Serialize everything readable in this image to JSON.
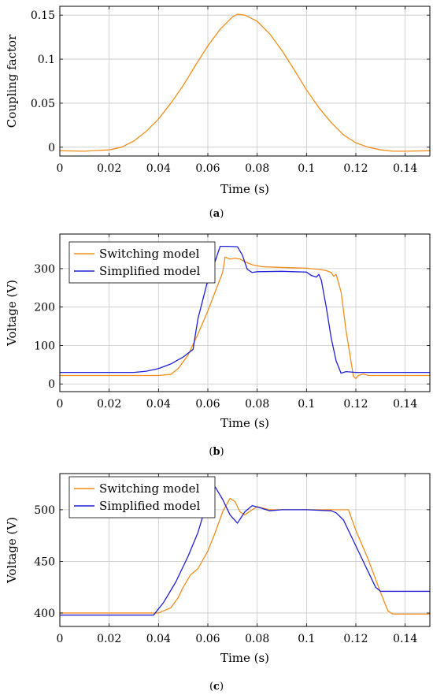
{
  "colors": {
    "orange": "#f28e1c",
    "blue": "#1f1fd8",
    "grid": "#c8c8c8",
    "axis": "#000000"
  },
  "chart_data": [
    {
      "type": "line",
      "caption": "a",
      "xlabel": "Time (s)",
      "ylabel": "Coupling factor",
      "xlim": [
        0,
        0.15
      ],
      "ylim": [
        -0.01,
        0.16
      ],
      "xticks": [
        0,
        0.02,
        0.04,
        0.06,
        0.08,
        0.1,
        0.12,
        0.14
      ],
      "xtick_labels": [
        "0",
        "0.02",
        "0.04",
        "0.06",
        "0.08",
        "0.1",
        "0.12",
        "0.14"
      ],
      "yticks": [
        0,
        0.05,
        0.1,
        0.15
      ],
      "ytick_labels": [
        "0",
        "0.05",
        "0.1",
        "0.15"
      ],
      "grid": true,
      "legend": "none",
      "series": [
        {
          "color": "#f28e1c",
          "points": [
            [
              0,
              -0.004
            ],
            [
              0.01,
              -0.0045
            ],
            [
              0.02,
              -0.003
            ],
            [
              0.025,
              0.0
            ],
            [
              0.03,
              0.007
            ],
            [
              0.035,
              0.018
            ],
            [
              0.04,
              0.032
            ],
            [
              0.045,
              0.05
            ],
            [
              0.05,
              0.07
            ],
            [
              0.055,
              0.093
            ],
            [
              0.06,
              0.115
            ],
            [
              0.065,
              0.134
            ],
            [
              0.07,
              0.148
            ],
            [
              0.072,
              0.151
            ],
            [
              0.075,
              0.15
            ],
            [
              0.08,
              0.143
            ],
            [
              0.085,
              0.129
            ],
            [
              0.09,
              0.11
            ],
            [
              0.095,
              0.088
            ],
            [
              0.1,
              0.065
            ],
            [
              0.105,
              0.045
            ],
            [
              0.11,
              0.028
            ],
            [
              0.115,
              0.014
            ],
            [
              0.12,
              0.005
            ],
            [
              0.125,
              0.0
            ],
            [
              0.13,
              -0.003
            ],
            [
              0.135,
              -0.0045
            ],
            [
              0.14,
              -0.0045
            ],
            [
              0.15,
              -0.004
            ]
          ]
        }
      ]
    },
    {
      "type": "line",
      "caption": "b",
      "xlabel": "Time (s)",
      "ylabel": "Voltage (V)",
      "xlim": [
        0,
        0.15
      ],
      "ylim": [
        -20,
        390
      ],
      "xticks": [
        0,
        0.02,
        0.04,
        0.06,
        0.08,
        0.1,
        0.12,
        0.14
      ],
      "xtick_labels": [
        "0",
        "0.02",
        "0.04",
        "0.06",
        "0.08",
        "0.1",
        "0.12",
        "0.14"
      ],
      "yticks": [
        0,
        100,
        200,
        300
      ],
      "ytick_labels": [
        "0",
        "100",
        "200",
        "300"
      ],
      "grid": true,
      "legend": "top-left",
      "series": [
        {
          "name": "Switching model",
          "color": "#f28e1c",
          "points": [
            [
              0,
              22
            ],
            [
              0.04,
              22
            ],
            [
              0.045,
              25
            ],
            [
              0.048,
              40
            ],
            [
              0.052,
              75
            ],
            [
              0.056,
              130
            ],
            [
              0.06,
              190
            ],
            [
              0.063,
              240
            ],
            [
              0.066,
              290
            ],
            [
              0.067,
              330
            ],
            [
              0.069,
              325
            ],
            [
              0.071,
              327
            ],
            [
              0.073,
              325
            ],
            [
              0.075,
              318
            ],
            [
              0.078,
              310
            ],
            [
              0.082,
              305
            ],
            [
              0.09,
              303
            ],
            [
              0.1,
              301
            ],
            [
              0.105,
              298
            ],
            [
              0.108,
              295
            ],
            [
              0.11,
              290
            ],
            [
              0.111,
              280
            ],
            [
              0.112,
              285
            ],
            [
              0.114,
              240
            ],
            [
              0.116,
              140
            ],
            [
              0.118,
              60
            ],
            [
              0.119,
              20
            ],
            [
              0.12,
              14
            ],
            [
              0.121,
              22
            ],
            [
              0.123,
              26
            ],
            [
              0.125,
              22
            ],
            [
              0.15,
              22
            ]
          ]
        },
        {
          "name": "Simplified model",
          "color": "#1f1fd8",
          "points": [
            [
              0,
              30
            ],
            [
              0.03,
              30
            ],
            [
              0.035,
              33
            ],
            [
              0.04,
              40
            ],
            [
              0.045,
              52
            ],
            [
              0.05,
              70
            ],
            [
              0.054,
              90
            ],
            [
              0.056,
              170
            ],
            [
              0.06,
              270
            ],
            [
              0.063,
              320
            ],
            [
              0.065,
              358
            ],
            [
              0.068,
              358
            ],
            [
              0.072,
              357
            ],
            [
              0.074,
              335
            ],
            [
              0.076,
              298
            ],
            [
              0.078,
              290
            ],
            [
              0.08,
              292
            ],
            [
              0.09,
              293
            ],
            [
              0.1,
              291
            ],
            [
              0.102,
              282
            ],
            [
              0.104,
              278
            ],
            [
              0.105,
              285
            ],
            [
              0.106,
              270
            ],
            [
              0.108,
              200
            ],
            [
              0.11,
              120
            ],
            [
              0.112,
              60
            ],
            [
              0.114,
              28
            ],
            [
              0.116,
              32
            ],
            [
              0.12,
              30
            ],
            [
              0.15,
              30
            ]
          ]
        }
      ]
    },
    {
      "type": "line",
      "caption": "c",
      "xlabel": "Time (s)",
      "ylabel": "Voltage (V)",
      "xlim": [
        0,
        0.15
      ],
      "ylim": [
        387,
        535
      ],
      "xticks": [
        0,
        0.02,
        0.04,
        0.06,
        0.08,
        0.1,
        0.12,
        0.14
      ],
      "xtick_labels": [
        "0",
        "0.02",
        "0.04",
        "0.06",
        "0.08",
        "0.1",
        "0.12",
        "0.14"
      ],
      "yticks": [
        400,
        450,
        500
      ],
      "ytick_labels": [
        "400",
        "450",
        "500"
      ],
      "grid": true,
      "legend": "top-left",
      "series": [
        {
          "name": "Switching model",
          "color": "#f28e1c",
          "points": [
            [
              0,
              400
            ],
            [
              0.04,
              400
            ],
            [
              0.045,
              405
            ],
            [
              0.048,
              415
            ],
            [
              0.05,
              425
            ],
            [
              0.053,
              437
            ],
            [
              0.056,
              443
            ],
            [
              0.06,
              460
            ],
            [
              0.063,
              478
            ],
            [
              0.066,
              498
            ],
            [
              0.069,
              511
            ],
            [
              0.071,
              508
            ],
            [
              0.073,
              498
            ],
            [
              0.075,
              495
            ],
            [
              0.078,
              500
            ],
            [
              0.08,
              503
            ],
            [
              0.085,
              500
            ],
            [
              0.1,
              500
            ],
            [
              0.117,
              500
            ],
            [
              0.12,
              480
            ],
            [
              0.125,
              452
            ],
            [
              0.13,
              420
            ],
            [
              0.133,
              402
            ],
            [
              0.135,
              399
            ],
            [
              0.15,
              399
            ]
          ]
        },
        {
          "name": "Simplified model",
          "color": "#1f1fd8",
          "points": [
            [
              0,
              398
            ],
            [
              0.038,
              398
            ],
            [
              0.042,
              410
            ],
            [
              0.047,
              430
            ],
            [
              0.052,
              455
            ],
            [
              0.056,
              478
            ],
            [
              0.06,
              510
            ],
            [
              0.063,
              522
            ],
            [
              0.066,
              510
            ],
            [
              0.069,
              495
            ],
            [
              0.072,
              487
            ],
            [
              0.075,
              498
            ],
            [
              0.078,
              504
            ],
            [
              0.081,
              502
            ],
            [
              0.085,
              499
            ],
            [
              0.09,
              500
            ],
            [
              0.1,
              500
            ],
            [
              0.11,
              499
            ],
            [
              0.112,
              497
            ],
            [
              0.115,
              490
            ],
            [
              0.12,
              465
            ],
            [
              0.125,
              440
            ],
            [
              0.128,
              425
            ],
            [
              0.13,
              421
            ],
            [
              0.15,
              421
            ]
          ]
        }
      ]
    }
  ]
}
